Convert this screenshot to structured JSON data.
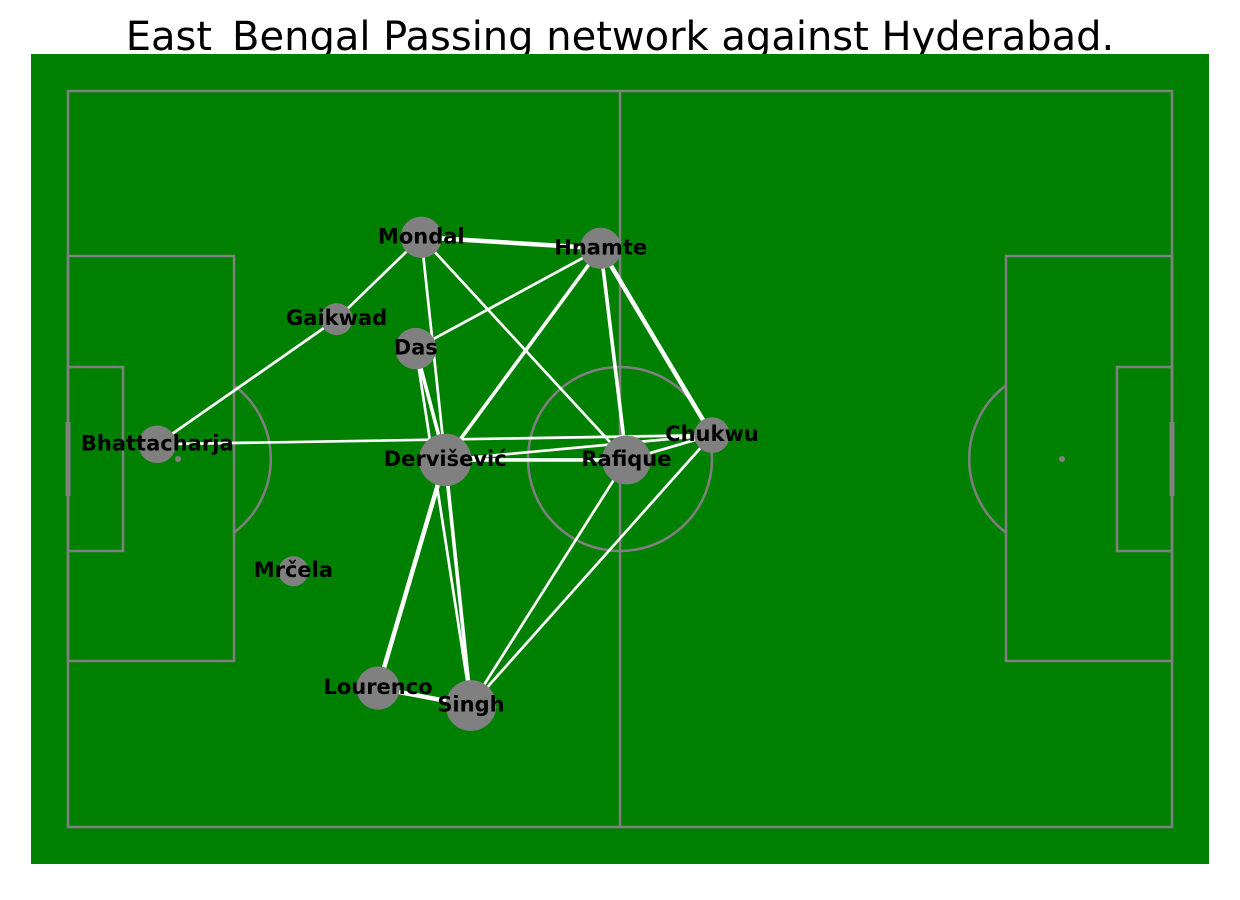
{
  "title": "East_Bengal Passing network against Hyderabad.",
  "colors": {
    "pitch": "#008000",
    "lines": "#808080",
    "node": "#808080",
    "edge": "#ffffff",
    "label": "#000000"
  },
  "chart_data": {
    "type": "network",
    "pitch": {
      "length": 120,
      "width": 80
    },
    "nodes": [
      {
        "id": "mondal",
        "label": "Mondal",
        "x": 38.4,
        "y": 64.1,
        "size": 2.2
      },
      {
        "id": "hnamte",
        "label": "Hnamte",
        "x": 57.9,
        "y": 62.9,
        "size": 2.2
      },
      {
        "id": "gaikwad",
        "label": "Gaikwad",
        "x": 29.2,
        "y": 55.2,
        "size": 1.7
      },
      {
        "id": "das",
        "label": "Das",
        "x": 37.8,
        "y": 52.0,
        "size": 2.2
      },
      {
        "id": "bhattacharja",
        "label": "Bhattacharja",
        "x": 9.7,
        "y": 41.6,
        "size": 2.0
      },
      {
        "id": "dervisevic",
        "label": "Dervišević",
        "x": 41.0,
        "y": 39.9,
        "size": 2.8
      },
      {
        "id": "rafique",
        "label": "Rafique",
        "x": 60.7,
        "y": 39.9,
        "size": 2.6
      },
      {
        "id": "chukwu",
        "label": "Chukwu",
        "x": 70.0,
        "y": 42.6,
        "size": 1.9
      },
      {
        "id": "mrcela",
        "label": "Mrčela",
        "x": 24.5,
        "y": 27.8,
        "size": 1.6
      },
      {
        "id": "lourenco",
        "label": "Lourenco",
        "x": 33.7,
        "y": 15.1,
        "size": 2.3
      },
      {
        "id": "singh",
        "label": "Singh",
        "x": 43.8,
        "y": 13.2,
        "size": 2.7
      }
    ],
    "edges": [
      {
        "from": "mondal",
        "to": "hnamte",
        "weight": 5
      },
      {
        "from": "mondal",
        "to": "gaikwad",
        "weight": 3
      },
      {
        "from": "mondal",
        "to": "dervisevic",
        "weight": 3
      },
      {
        "from": "mondal",
        "to": "rafique",
        "weight": 3
      },
      {
        "from": "gaikwad",
        "to": "bhattacharja",
        "weight": 3
      },
      {
        "from": "hnamte",
        "to": "das",
        "weight": 3
      },
      {
        "from": "hnamte",
        "to": "dervisevic",
        "weight": 4
      },
      {
        "from": "hnamte",
        "to": "rafique",
        "weight": 4
      },
      {
        "from": "hnamte",
        "to": "chukwu",
        "weight": 5
      },
      {
        "from": "das",
        "to": "dervisevic",
        "weight": 4
      },
      {
        "from": "das",
        "to": "singh",
        "weight": 3
      },
      {
        "from": "bhattacharja",
        "to": "chukwu",
        "weight": 3
      },
      {
        "from": "dervisevic",
        "to": "rafique",
        "weight": 4
      },
      {
        "from": "dervisevic",
        "to": "chukwu",
        "weight": 3
      },
      {
        "from": "dervisevic",
        "to": "lourenco",
        "weight": 5
      },
      {
        "from": "dervisevic",
        "to": "singh",
        "weight": 4
      },
      {
        "from": "rafique",
        "to": "chukwu",
        "weight": 3
      },
      {
        "from": "rafique",
        "to": "singh",
        "weight": 3
      },
      {
        "from": "chukwu",
        "to": "singh",
        "weight": 3
      },
      {
        "from": "lourenco",
        "to": "singh",
        "weight": 5
      }
    ]
  }
}
